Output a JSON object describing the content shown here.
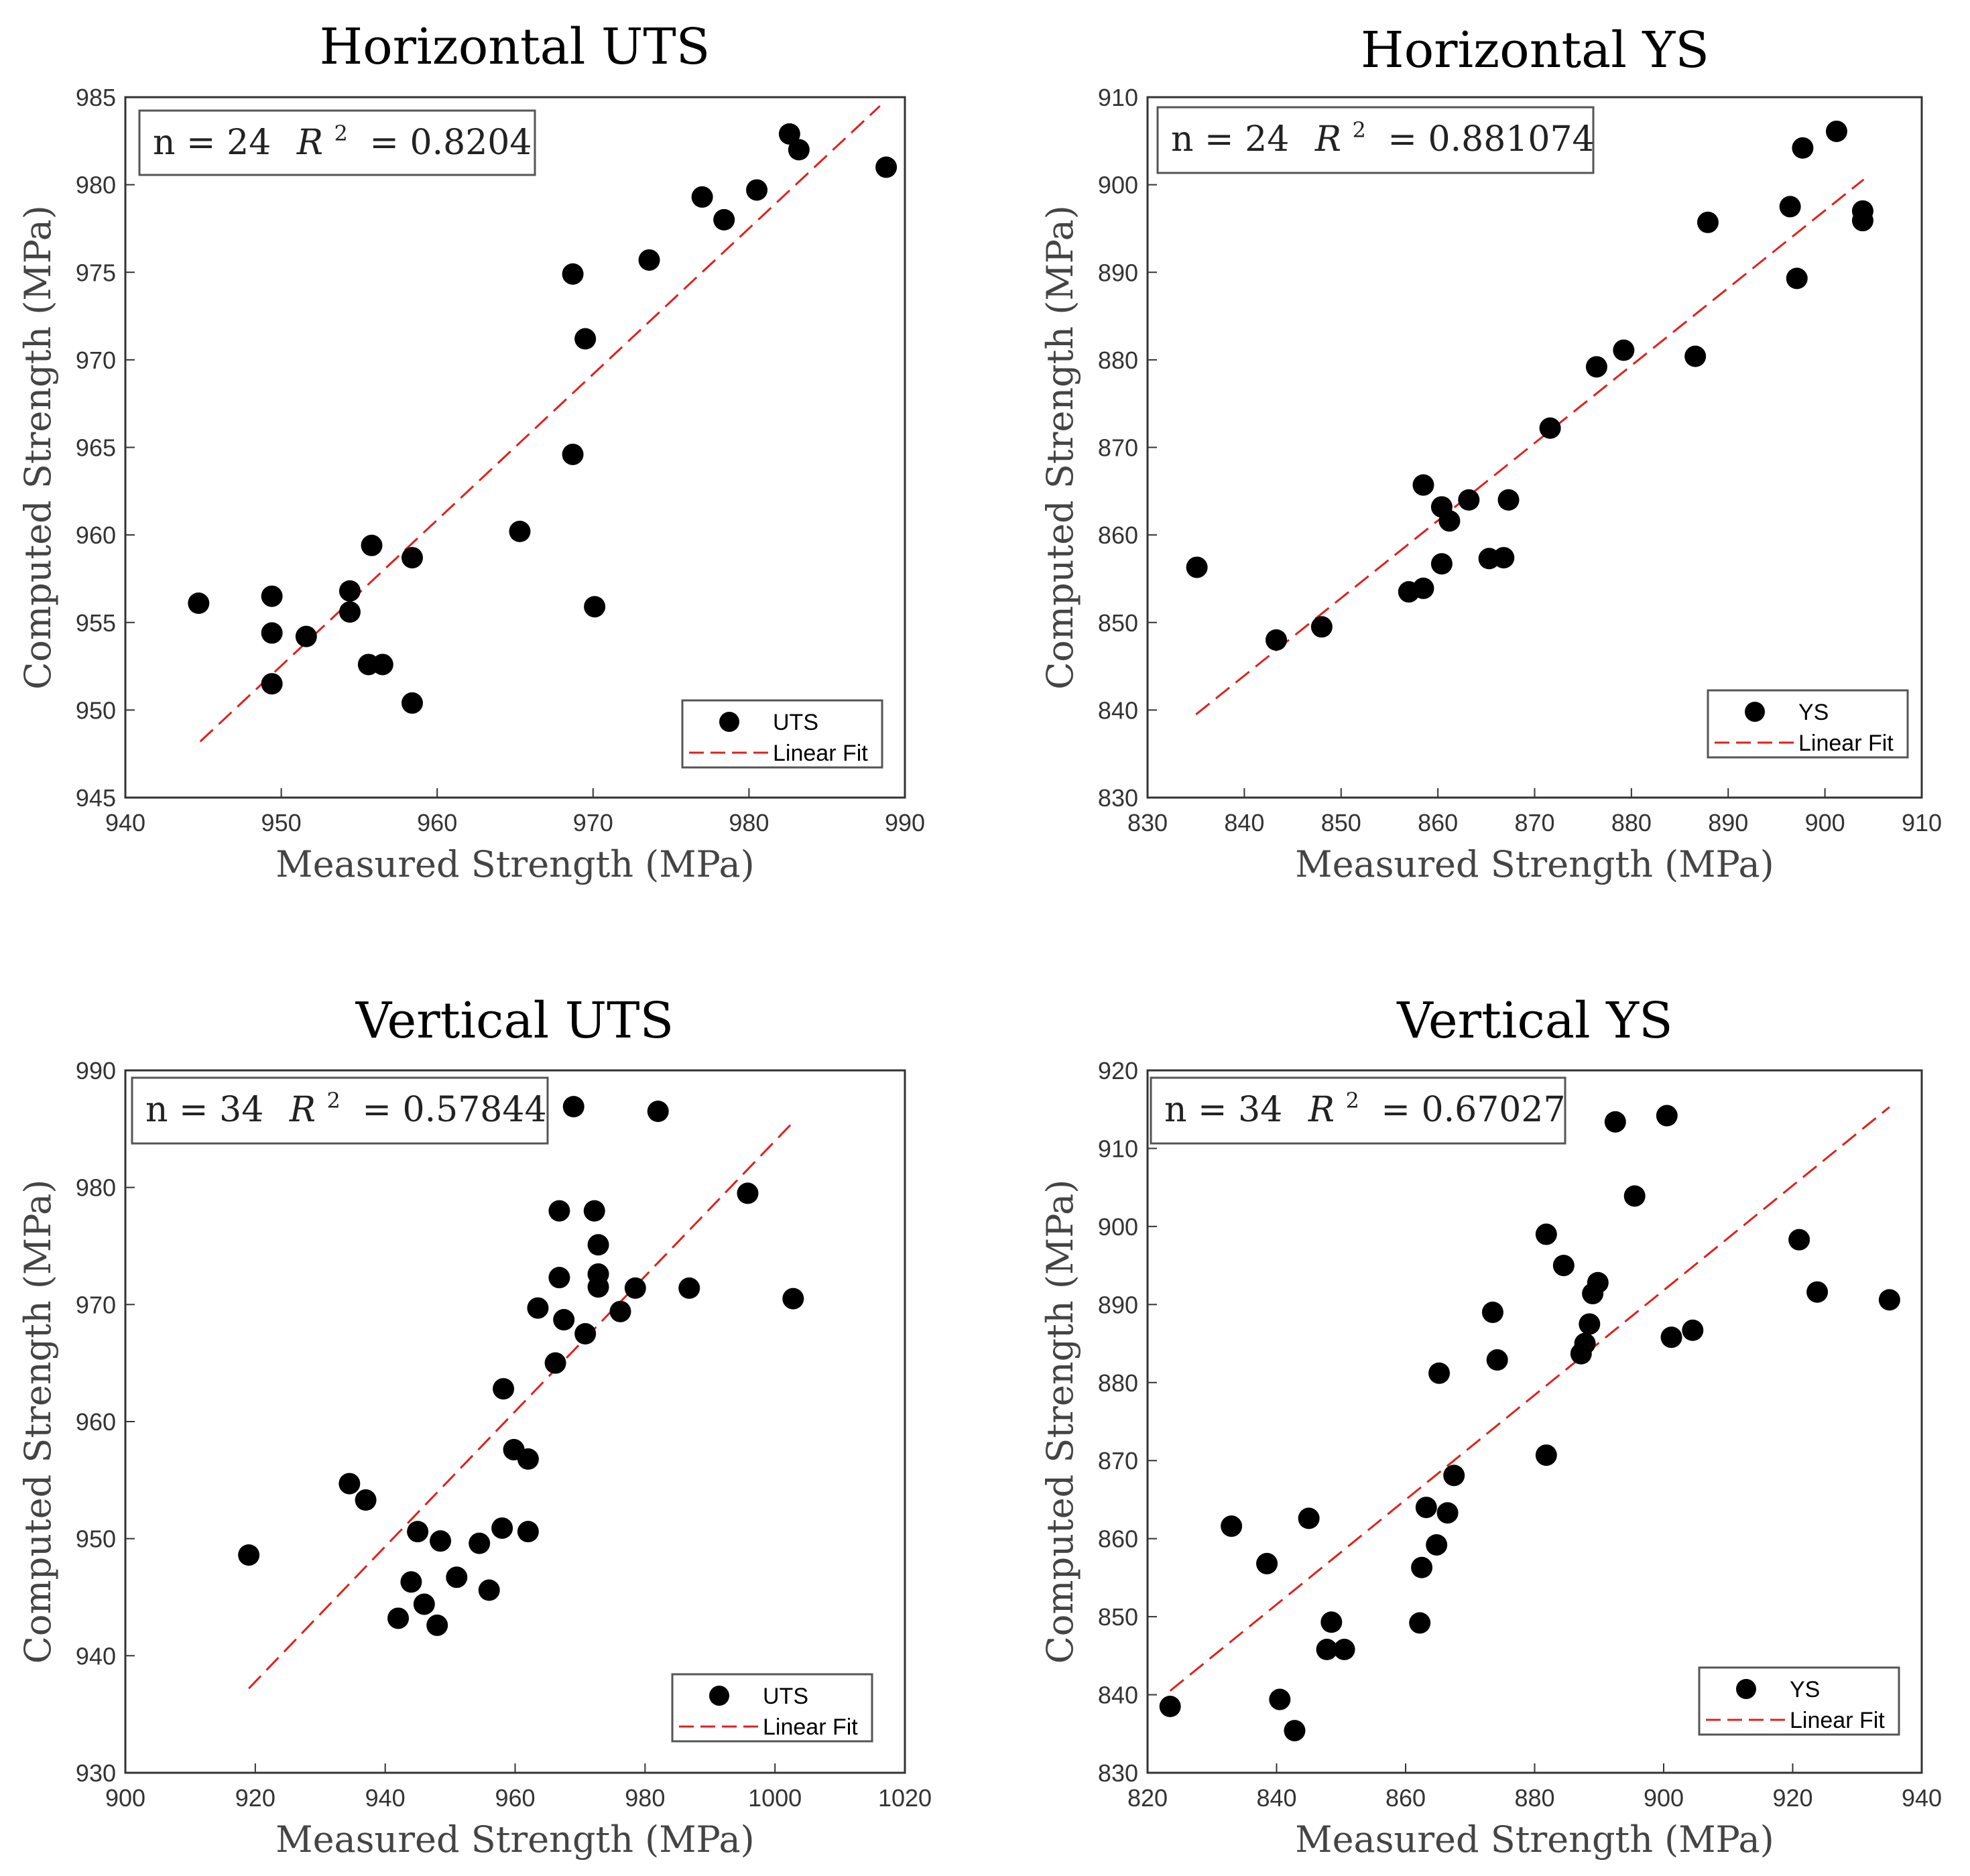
{
  "colors": {
    "points": "#000000",
    "fit": "#e0201c",
    "axis": "#333333",
    "box": "#555555"
  },
  "chart_data": [
    {
      "type": "scatter",
      "title": "Horizontal UTS",
      "xlabel": "Measured Strength (MPa)",
      "ylabel": "Computed Strength (MPa)",
      "xlim": [
        940,
        990
      ],
      "ylim": [
        945,
        985
      ],
      "xticks": [
        940,
        950,
        960,
        970,
        980,
        990
      ],
      "yticks": [
        945,
        950,
        955,
        960,
        965,
        970,
        975,
        980,
        985
      ],
      "annotation": {
        "n_text": "n = 24",
        "r2_label": "R",
        "r2_sup": "2",
        "r2_value": "= 0.8204"
      },
      "legend": {
        "position": "bottom-right",
        "entries": [
          "UTS",
          "Linear Fit"
        ]
      },
      "fit": {
        "x": [
          944.8,
          988.4
        ],
        "y": [
          948.2,
          984.5
        ]
      },
      "x": [
        944.7,
        949.4,
        949.4,
        949.4,
        951.6,
        954.4,
        954.4,
        955.8,
        955.6,
        956.5,
        958.4,
        958.4,
        965.3,
        968.7,
        968.7,
        969.5,
        970.1,
        973.6,
        977.0,
        978.4,
        980.5,
        982.6,
        983.2,
        988.8
      ],
      "y": [
        956.1,
        956.5,
        954.4,
        951.5,
        954.2,
        956.8,
        955.6,
        959.4,
        952.6,
        952.6,
        958.7,
        950.4,
        960.2,
        964.6,
        974.9,
        971.2,
        955.9,
        975.7,
        979.3,
        978.0,
        979.7,
        982.9,
        982.0,
        981.0
      ]
    },
    {
      "type": "scatter",
      "title": "Horizontal YS",
      "xlabel": "Measured Strength (MPa)",
      "ylabel": "Computed Strength (MPa)",
      "xlim": [
        830,
        910
      ],
      "ylim": [
        830,
        910
      ],
      "xticks": [
        830,
        840,
        850,
        860,
        870,
        880,
        890,
        900,
        910
      ],
      "yticks": [
        830,
        840,
        850,
        860,
        870,
        880,
        890,
        900,
        910
      ],
      "annotation": {
        "n_text": "n = 24",
        "r2_label": "R",
        "r2_sup": "2",
        "r2_value": "= 0.881074"
      },
      "legend": {
        "position": "bottom-right",
        "entries": [
          "YS",
          "Linear Fit"
        ]
      },
      "fit": {
        "x": [
          835.0,
          904.0
        ],
        "y": [
          839.5,
          900.6
        ]
      },
      "x": [
        835.1,
        843.3,
        848.0,
        857.0,
        858.5,
        858.5,
        860.4,
        860.4,
        861.2,
        863.2,
        865.3,
        866.8,
        867.3,
        871.6,
        876.4,
        879.2,
        886.6,
        887.9,
        896.4,
        897.1,
        897.7,
        901.2,
        903.9,
        903.9
      ],
      "y": [
        856.3,
        848.0,
        849.5,
        853.5,
        853.9,
        865.7,
        863.2,
        856.7,
        861.6,
        864.0,
        857.3,
        857.4,
        864.0,
        872.2,
        879.2,
        881.1,
        880.4,
        895.7,
        897.5,
        889.3,
        904.2,
        906.1,
        897.0,
        895.9
      ]
    },
    {
      "type": "scatter",
      "title": "Vertical UTS",
      "xlabel": "Measured Strength (MPa)",
      "ylabel": "Computed Strength (MPa)",
      "xlim": [
        900,
        1020
      ],
      "ylim": [
        930,
        990
      ],
      "xticks": [
        900,
        920,
        940,
        960,
        980,
        1000,
        1020
      ],
      "yticks": [
        930,
        940,
        950,
        960,
        970,
        980,
        990
      ],
      "annotation": {
        "n_text": "n = 34",
        "r2_label": "R",
        "r2_sup": "2",
        "r2_value": "= 0.57844"
      },
      "legend": {
        "position": "bottom-right",
        "entries": [
          "UTS",
          "Linear Fit"
        ]
      },
      "fit": {
        "x": [
          919.0,
          1003.0
        ],
        "y": [
          937.2,
          985.7
        ]
      },
      "x": [
        919.0,
        934.5,
        937.0,
        942.0,
        944.0,
        945.0,
        946.0,
        948.0,
        948.5,
        951.0,
        954.5,
        956.0,
        958.0,
        958.2,
        959.8,
        962.0,
        962.0,
        963.5,
        966.2,
        966.8,
        966.8,
        967.5,
        969.0,
        970.8,
        972.2,
        972.8,
        972.8,
        972.8,
        976.2,
        978.5,
        982.0,
        986.8,
        995.8,
        1002.8
      ],
      "y": [
        948.6,
        954.7,
        953.3,
        943.2,
        946.3,
        950.6,
        944.4,
        942.6,
        949.8,
        946.7,
        949.6,
        945.6,
        950.9,
        962.8,
        957.6,
        950.6,
        956.8,
        969.7,
        965.0,
        978.0,
        972.3,
        968.7,
        986.9,
        967.5,
        978.0,
        975.1,
        972.6,
        971.5,
        969.4,
        971.4,
        986.5,
        971.4,
        979.5,
        970.5
      ]
    },
    {
      "type": "scatter",
      "title": "Vertical YS",
      "xlabel": "Measured Strength (MPa)",
      "ylabel": "Computed Strength (MPa)",
      "xlim": [
        820,
        940
      ],
      "ylim": [
        830,
        920
      ],
      "xticks": [
        820,
        840,
        860,
        880,
        900,
        920,
        940
      ],
      "yticks": [
        830,
        840,
        850,
        860,
        870,
        880,
        890,
        900,
        910,
        920
      ],
      "annotation": {
        "n_text": "n = 34",
        "r2_label": "R",
        "r2_sup": "2",
        "r2_value": "= 0.67027"
      },
      "legend": {
        "position": "bottom-right",
        "entries": [
          "YS",
          "Linear Fit"
        ]
      },
      "fit": {
        "x": [
          823.5,
          935.0
        ],
        "y": [
          840.5,
          915.3
        ]
      },
      "x": [
        823.5,
        833.0,
        838.5,
        840.5,
        842.8,
        845.0,
        847.8,
        848.5,
        850.5,
        862.2,
        862.5,
        863.2,
        864.8,
        865.2,
        866.5,
        867.5,
        873.5,
        874.2,
        881.8,
        881.8,
        884.5,
        887.2,
        887.8,
        888.5,
        889.0,
        889.8,
        892.5,
        895.5,
        900.5,
        901.2,
        904.5,
        921.0,
        923.8,
        935.0
      ],
      "y": [
        838.5,
        861.6,
        856.8,
        839.4,
        835.4,
        862.6,
        845.8,
        849.3,
        845.8,
        849.2,
        856.3,
        864.0,
        859.2,
        881.2,
        863.3,
        868.1,
        889.0,
        882.9,
        870.7,
        899.0,
        895.0,
        883.7,
        885.0,
        887.5,
        891.4,
        892.8,
        913.4,
        903.9,
        914.2,
        885.8,
        886.7,
        898.3,
        891.6,
        890.6
      ]
    }
  ]
}
